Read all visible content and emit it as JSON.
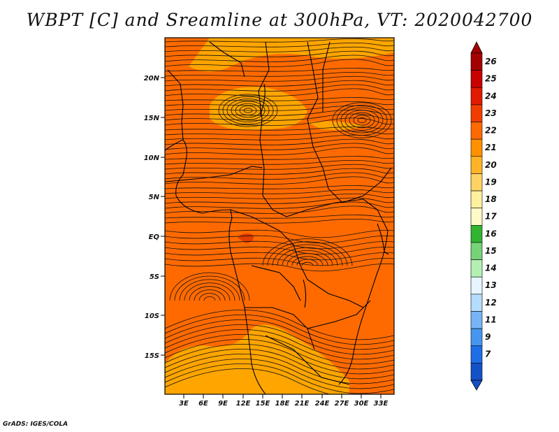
{
  "title": "WBPT [C] and Sreamline at 300hPa, VT: 2020042700",
  "credit": "GrADS: IGES/COLA",
  "map": {
    "lat_labels": [
      "20N",
      "15N",
      "10N",
      "5N",
      "EQ",
      "5S",
      "10S",
      "15S"
    ],
    "lon_labels": [
      "3E",
      "6E",
      "9E",
      "12E",
      "15E",
      "18E",
      "21E",
      "24E",
      "27E",
      "30E",
      "33E"
    ],
    "background_color": "#ff6a00",
    "highlight_color": "#ffa500"
  },
  "colorbar": {
    "labels": [
      "26",
      "25",
      "24",
      "23",
      "22",
      "21",
      "20",
      "19",
      "18",
      "17",
      "16",
      "15",
      "14",
      "13",
      "12",
      "11",
      "9",
      "7"
    ],
    "colors": [
      "#a50000",
      "#c80000",
      "#e11a00",
      "#f23d00",
      "#ff6a00",
      "#ff9100",
      "#ffb428",
      "#ffd264",
      "#fff0a0",
      "#fffac8",
      "#32b432",
      "#78d278",
      "#b4f0b4",
      "#e6f5ff",
      "#b4dcff",
      "#78b4f5",
      "#4696f0",
      "#1e6ee6",
      "#1450c8"
    ]
  }
}
